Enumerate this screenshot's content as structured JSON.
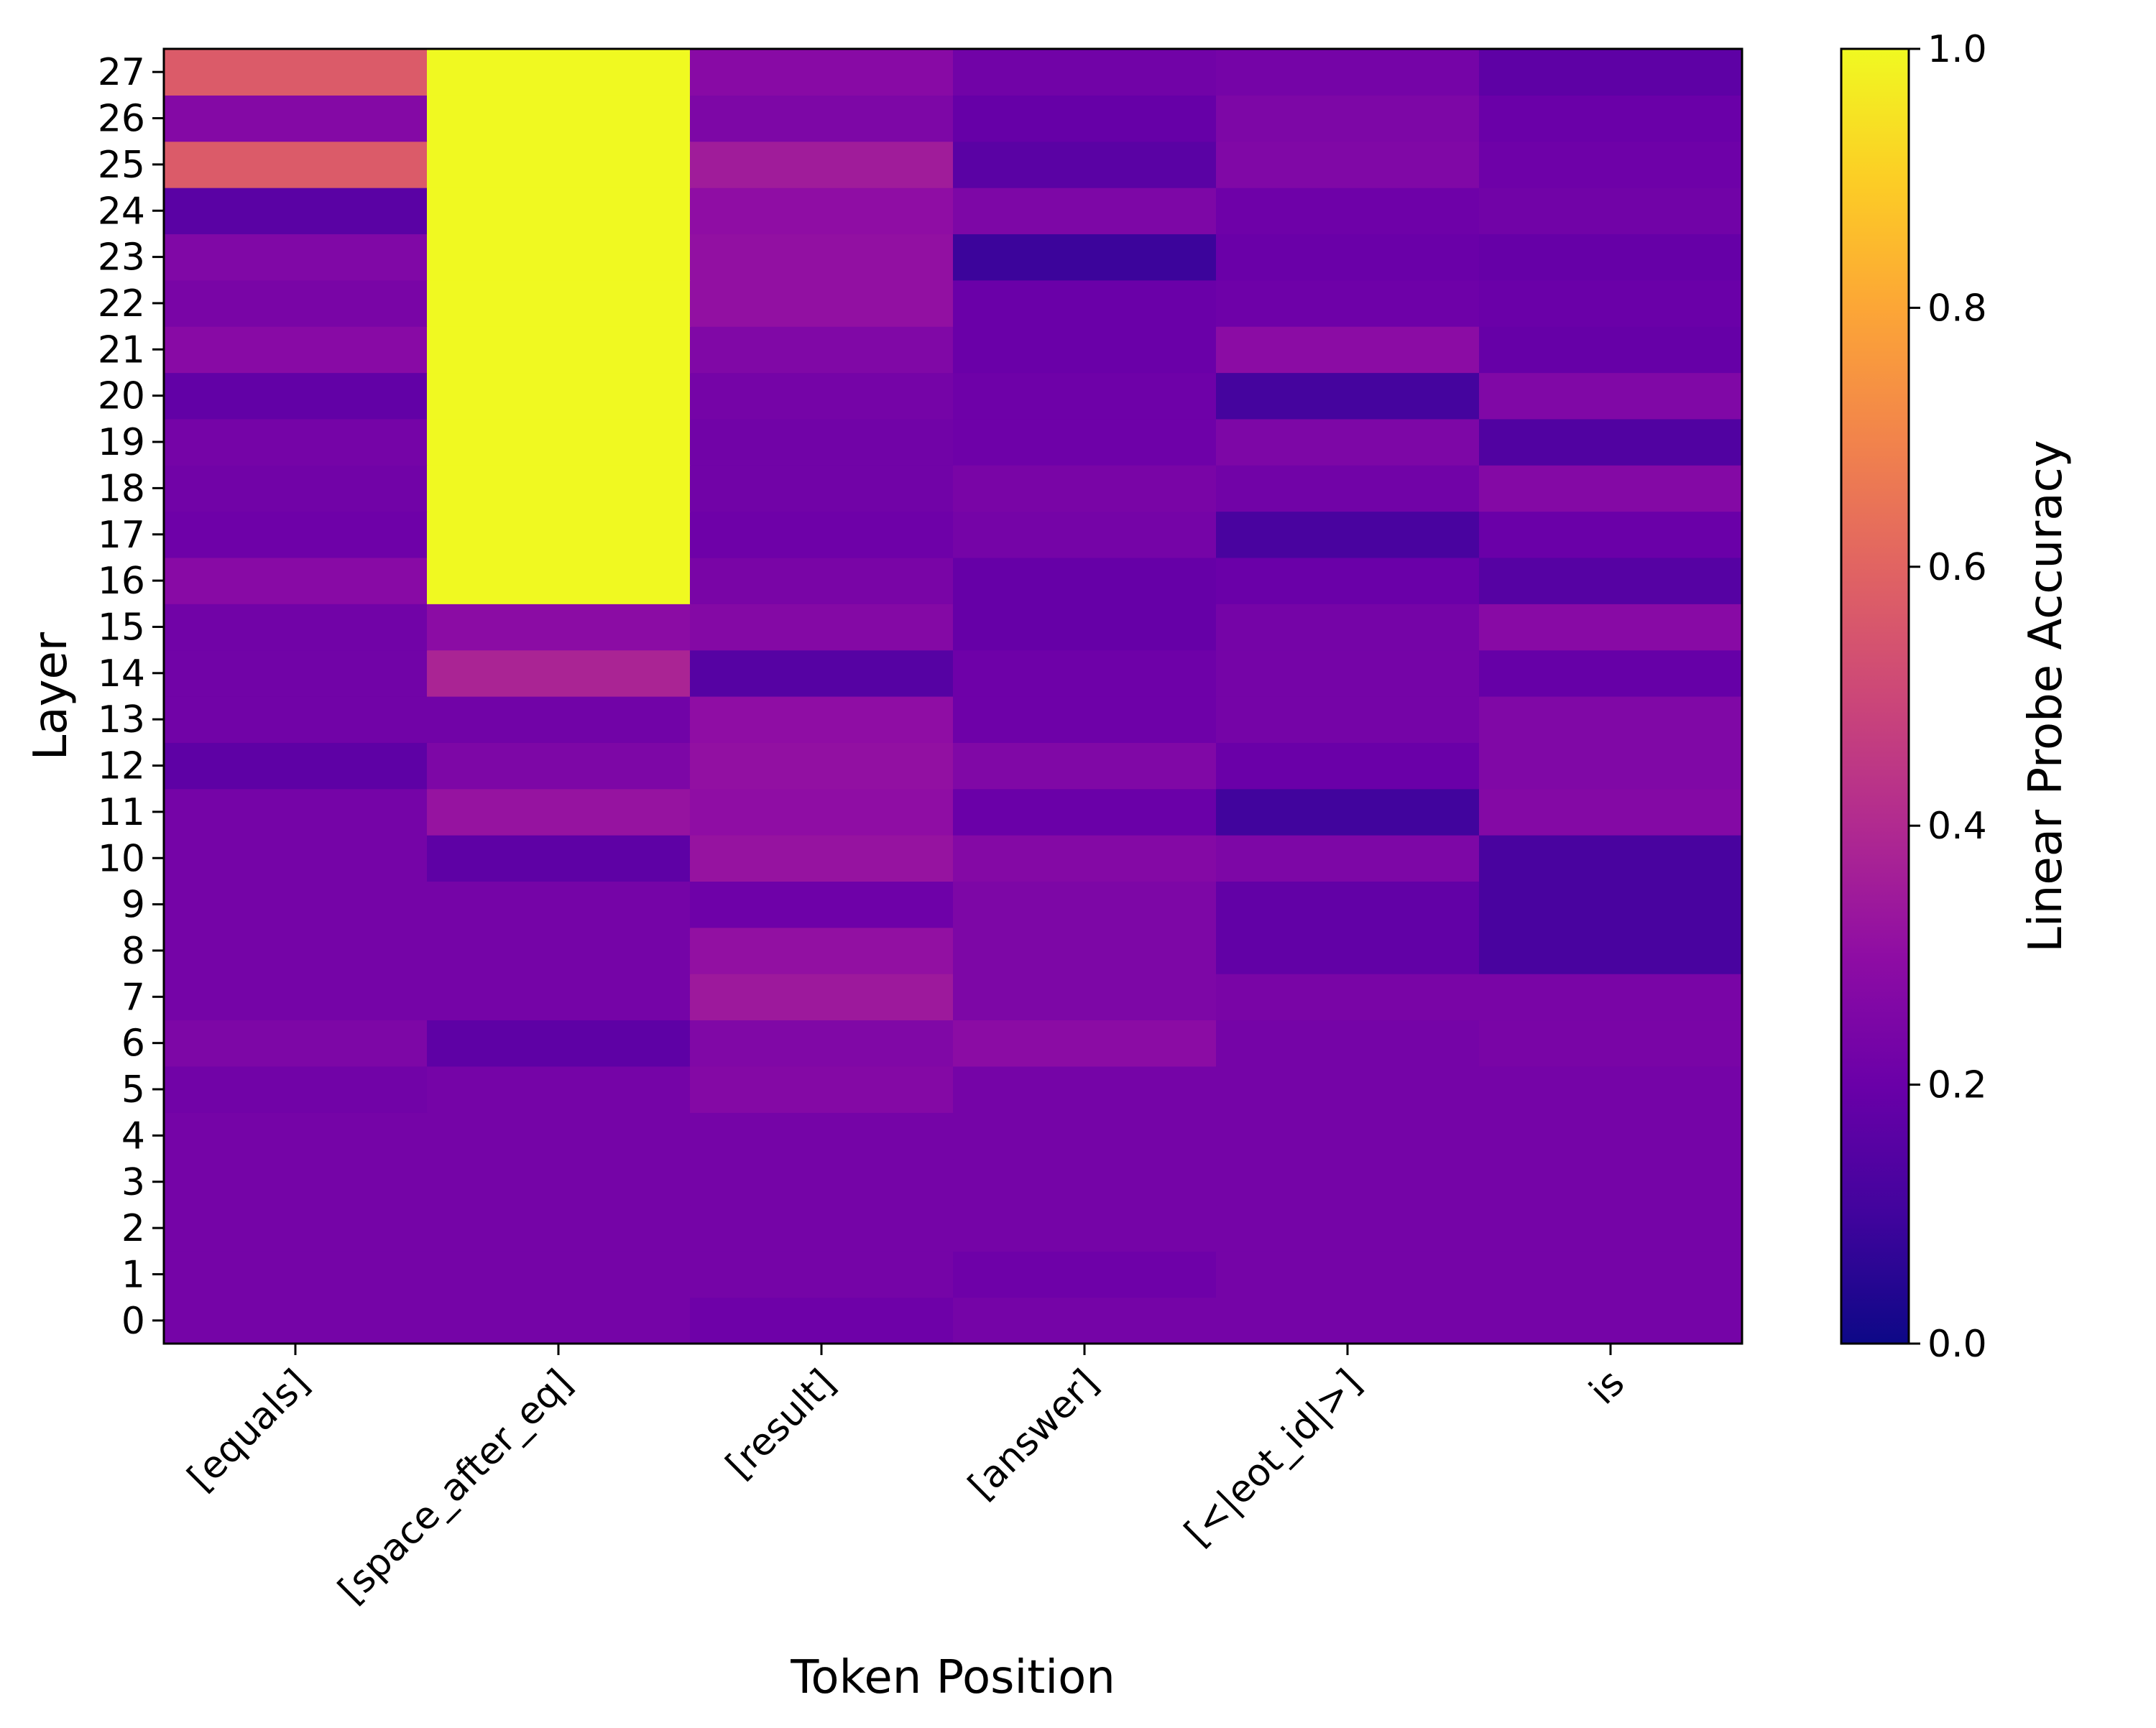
{
  "chart_data": {
    "type": "heatmap",
    "title": "",
    "xlabel": "Token Position",
    "ylabel": "Layer",
    "colorbar_label": "Linear Probe Accuracy",
    "colormap": "plasma",
    "vmin": 0.0,
    "vmax": 1.0,
    "colorbar_ticks": [
      "0.0",
      "0.2",
      "0.4",
      "0.6",
      "0.8",
      "1.0"
    ],
    "colorbar_tick_values": [
      0.0,
      0.2,
      0.4,
      0.6,
      0.8,
      1.0
    ],
    "x_categories": [
      "[equals]",
      "[space_after_eq]",
      "[result]",
      "[answer]",
      "[<|eot_id|>]",
      "is"
    ],
    "y_categories": [
      "0",
      "1",
      "2",
      "3",
      "4",
      "5",
      "6",
      "7",
      "8",
      "9",
      "10",
      "11",
      "12",
      "13",
      "14",
      "15",
      "16",
      "17",
      "18",
      "19",
      "20",
      "21",
      "22",
      "23",
      "24",
      "25",
      "26",
      "27"
    ],
    "values": [
      [
        0.23,
        0.23,
        0.21,
        0.23,
        0.23,
        0.23
      ],
      [
        0.23,
        0.23,
        0.23,
        0.21,
        0.23,
        0.23
      ],
      [
        0.23,
        0.23,
        0.23,
        0.23,
        0.23,
        0.23
      ],
      [
        0.23,
        0.23,
        0.23,
        0.23,
        0.23,
        0.23
      ],
      [
        0.23,
        0.23,
        0.23,
        0.23,
        0.23,
        0.23
      ],
      [
        0.22,
        0.23,
        0.27,
        0.23,
        0.23,
        0.23
      ],
      [
        0.25,
        0.17,
        0.26,
        0.29,
        0.23,
        0.24
      ],
      [
        0.23,
        0.23,
        0.34,
        0.25,
        0.24,
        0.24
      ],
      [
        0.23,
        0.23,
        0.31,
        0.25,
        0.18,
        0.12
      ],
      [
        0.23,
        0.23,
        0.21,
        0.25,
        0.18,
        0.12
      ],
      [
        0.23,
        0.17,
        0.32,
        0.27,
        0.25,
        0.12
      ],
      [
        0.23,
        0.32,
        0.3,
        0.2,
        0.1,
        0.27
      ],
      [
        0.17,
        0.25,
        0.31,
        0.26,
        0.2,
        0.26
      ],
      [
        0.22,
        0.22,
        0.3,
        0.21,
        0.23,
        0.26
      ],
      [
        0.22,
        0.38,
        0.15,
        0.21,
        0.23,
        0.19
      ],
      [
        0.22,
        0.29,
        0.27,
        0.19,
        0.23,
        0.28
      ],
      [
        0.28,
        1.0,
        0.24,
        0.19,
        0.2,
        0.15
      ],
      [
        0.21,
        1.0,
        0.21,
        0.23,
        0.12,
        0.2
      ],
      [
        0.22,
        1.0,
        0.22,
        0.24,
        0.22,
        0.27
      ],
      [
        0.23,
        1.0,
        0.22,
        0.21,
        0.25,
        0.14
      ],
      [
        0.18,
        1.0,
        0.23,
        0.21,
        0.11,
        0.26
      ],
      [
        0.28,
        1.0,
        0.26,
        0.2,
        0.29,
        0.19
      ],
      [
        0.24,
        1.0,
        0.31,
        0.2,
        0.21,
        0.2
      ],
      [
        0.26,
        1.0,
        0.31,
        0.09,
        0.2,
        0.19
      ],
      [
        0.16,
        1.0,
        0.3,
        0.25,
        0.21,
        0.22
      ],
      [
        0.57,
        1.0,
        0.35,
        0.16,
        0.26,
        0.21
      ],
      [
        0.27,
        1.0,
        0.25,
        0.19,
        0.25,
        0.2
      ],
      [
        0.57,
        1.0,
        0.28,
        0.22,
        0.23,
        0.17
      ]
    ]
  }
}
